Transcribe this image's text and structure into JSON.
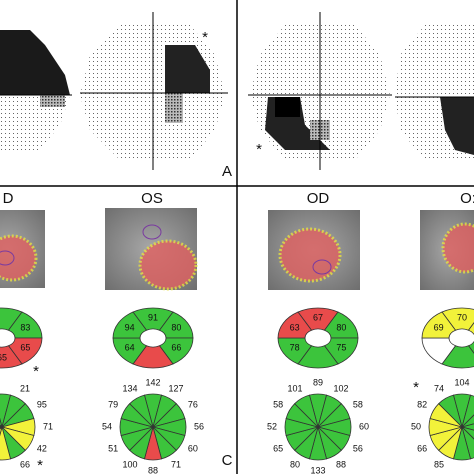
{
  "labels": [
    "A",
    "C"
  ],
  "asterisks": [
    "*",
    "*",
    "*",
    "*",
    "*",
    "*"
  ],
  "sector_colors": {
    "g": "#3cc43c",
    "r": "#e84b4b",
    "y": "#f2f23a",
    "w": "#ffffff"
  },
  "columns": [
    {
      "eye": "D",
      "ring": [
        null,
        83,
        65,
        65,
        null,
        null
      ],
      "ring_colors": [
        "g",
        "g",
        "r",
        "r",
        "g",
        "g"
      ],
      "radial": [
        null,
        21,
        95,
        71,
        42,
        66,
        null,
        null,
        null,
        null,
        null,
        null
      ],
      "radial_colors": [
        "g",
        "g",
        "g",
        "y",
        "y",
        "g",
        "y",
        "y",
        "y",
        "g",
        "g",
        "g"
      ]
    },
    {
      "eye": "OS",
      "ring": [
        91,
        80,
        66,
        null,
        64,
        94
      ],
      "ring_colors": [
        "g",
        "g",
        "g",
        "r",
        "g",
        "g"
      ],
      "radial": [
        142,
        127,
        76,
        56,
        60,
        71,
        88,
        100,
        51,
        54,
        79,
        134
      ],
      "radial_colors": [
        "g",
        "g",
        "g",
        "g",
        "g",
        "g",
        "r",
        "g",
        "g",
        "g",
        "g",
        "g"
      ]
    },
    {
      "eye": "OD",
      "ring": [
        67,
        80,
        75,
        null,
        78,
        63
      ],
      "ring_colors": [
        "r",
        "g",
        "g",
        "g",
        "g",
        "r"
      ],
      "radial": [
        89,
        102,
        58,
        60,
        56,
        88,
        133,
        80,
        65,
        52,
        58,
        101
      ],
      "radial_colors": [
        "g",
        "g",
        "g",
        "g",
        "g",
        "g",
        "g",
        "g",
        "g",
        "g",
        "g",
        "g"
      ]
    },
    {
      "eye": "O:",
      "ring": [
        70,
        null,
        null,
        null,
        null,
        69
      ],
      "ring_colors": [
        "y",
        "y",
        "g",
        "g",
        "w",
        "y"
      ],
      "radial": [
        104,
        null,
        null,
        null,
        null,
        null,
        null,
        85,
        66,
        50,
        82,
        74
      ],
      "radial_colors": [
        "g",
        "g",
        "g",
        "g",
        "g",
        "g",
        "g",
        "y",
        "y",
        "y",
        "y",
        "g"
      ]
    }
  ]
}
